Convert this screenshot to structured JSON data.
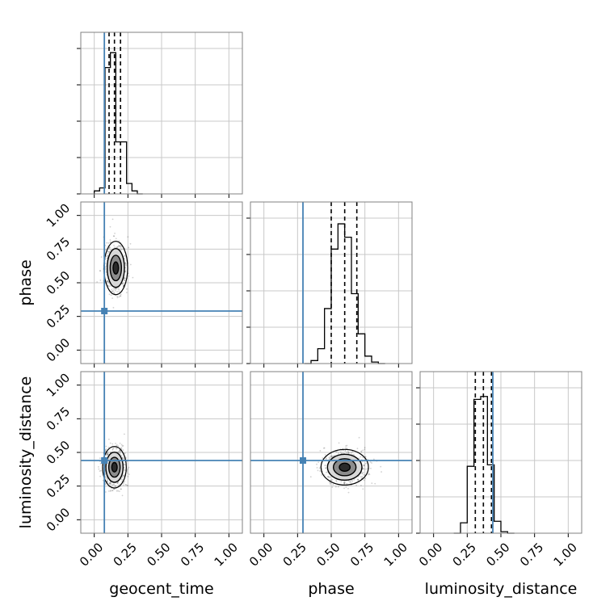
{
  "chart_data": {
    "type": "corner",
    "parameters": [
      "geocent_time",
      "phase",
      "luminosity_distance"
    ],
    "axis_range": [
      -0.1,
      1.1
    ],
    "tick_values": [
      0.0,
      0.25,
      0.5,
      0.75,
      1.0
    ],
    "tick_labels": [
      "0.00",
      "0.25",
      "0.50",
      "0.75",
      "1.00"
    ],
    "grid": true,
    "colors": {
      "truth": "#4682b4",
      "hist": "#000000",
      "grid": "#c8c8c8",
      "frame": "#808080"
    },
    "truths": {
      "geocent_time": 0.075,
      "phase": 0.29,
      "luminosity_distance": 0.44
    },
    "quantiles": {
      "geocent_time": [
        0.11,
        0.15,
        0.195
      ],
      "phase": [
        0.5,
        0.6,
        0.69
      ],
      "luminosity_distance": [
        0.31,
        0.37,
        0.43
      ]
    },
    "histograms": {
      "geocent_time": {
        "bin_edges": [
          0.0,
          0.04,
          0.08,
          0.12,
          0.16,
          0.2,
          0.24,
          0.28,
          0.32,
          0.36
        ],
        "counts": [
          0.02,
          0.04,
          0.85,
          0.95,
          0.35,
          0.35,
          0.07,
          0.02,
          0.0
        ],
        "max": 1.0
      },
      "phase": {
        "bin_edges": [
          0.3,
          0.35,
          0.4,
          0.45,
          0.5,
          0.55,
          0.6,
          0.65,
          0.7,
          0.75,
          0.8,
          0.85,
          0.9
        ],
        "counts": [
          0.0,
          0.02,
          0.1,
          0.37,
          0.77,
          0.94,
          0.85,
          0.47,
          0.2,
          0.05,
          0.01,
          0.0
        ],
        "max": 1.0
      },
      "luminosity_distance": {
        "bin_edges": [
          0.15,
          0.2,
          0.25,
          0.3,
          0.35,
          0.4,
          0.45,
          0.5,
          0.55,
          0.6
        ],
        "counts": [
          0.0,
          0.07,
          0.45,
          0.9,
          0.92,
          0.46,
          0.08,
          0.01,
          0.0
        ],
        "max": 1.0
      }
    },
    "two_d": [
      {
        "x": "geocent_time",
        "y": "phase",
        "center": [
          0.16,
          0.61
        ],
        "spread": [
          0.04,
          0.09
        ]
      },
      {
        "x": "geocent_time",
        "y": "luminosity_distance",
        "center": [
          0.15,
          0.39
        ],
        "spread": [
          0.04,
          0.07
        ]
      },
      {
        "x": "phase",
        "y": "luminosity_distance",
        "center": [
          0.6,
          0.39
        ],
        "spread": [
          0.08,
          0.06
        ]
      }
    ]
  },
  "labels": {
    "x": [
      "geocent_time",
      "phase",
      "luminosity_distance"
    ],
    "y": [
      "phase",
      "luminosity_distance"
    ]
  }
}
